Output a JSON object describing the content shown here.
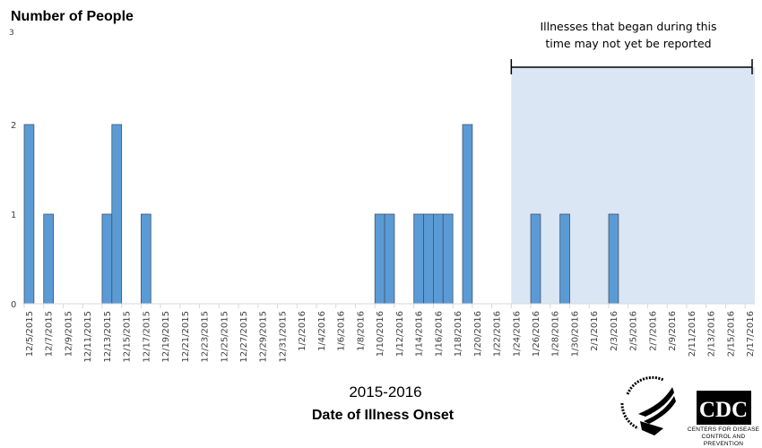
{
  "chart_data": {
    "type": "bar",
    "ylabel": "Number of People",
    "xlabel_year": "2015-2016",
    "xlabel": "Date of Illness Onset",
    "ylim": [
      0,
      3
    ],
    "yticks": [
      0,
      1,
      2,
      3
    ],
    "start_date": "2015-12-05",
    "end_date": "2016-02-17",
    "tick_label_every_days": 2,
    "bar_color": "#5b9bd5",
    "bar_edge_color": "#41546b",
    "values": {
      "12/5/2015": 2,
      "12/7/2015": 1,
      "12/13/2015": 1,
      "12/14/2015": 2,
      "12/17/2015": 1,
      "1/10/2016": 1,
      "1/11/2016": 1,
      "1/14/2016": 1,
      "1/15/2016": 1,
      "1/16/2016": 1,
      "1/17/2016": 1,
      "1/19/2016": 2,
      "1/26/2016": 1,
      "1/29/2016": 1,
      "2/3/2016": 1
    },
    "annotation": {
      "text_line1": "Illnesses that began during this",
      "text_line2": "time may not yet be reported",
      "shade_start": "1/24/2016",
      "shade_end": "2/17/2016",
      "shade_color": "#dae6f3"
    }
  },
  "logos": {
    "hhs": "DEPARTMENT OF HEALTH & HUMAN SERVICES USA",
    "cdc": "CDC",
    "cdc_sub": "CENTERS FOR DISEASE CONTROL AND PREVENTION"
  }
}
